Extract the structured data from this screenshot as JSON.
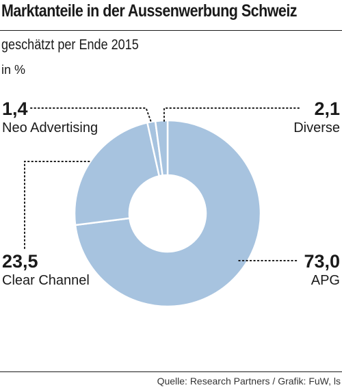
{
  "header": {
    "title": "Marktanteile in der Aussenwerbung Schweiz",
    "subtitle": "geschätzt per Ende 2015",
    "unit": "in %"
  },
  "footer": {
    "source": "Quelle: Research Partners / Grafik: FuW, ls"
  },
  "colors": {
    "slice": "#a7c3df",
    "separator": "#ffffff",
    "leader": "#1a1a1a"
  },
  "chart_data": {
    "type": "pie",
    "variant": "donut",
    "title": "Marktanteile in der Aussenwerbung Schweiz",
    "subtitle": "geschätzt per Ende 2015",
    "unit": "in %",
    "legend": "none",
    "categories": [
      "APG",
      "Clear Channel",
      "Neo Advertising",
      "Diverse"
    ],
    "values": [
      73.0,
      23.5,
      1.4,
      2.1
    ],
    "value_labels": [
      "73,0",
      "23,5",
      "1,4",
      "2,1"
    ]
  }
}
